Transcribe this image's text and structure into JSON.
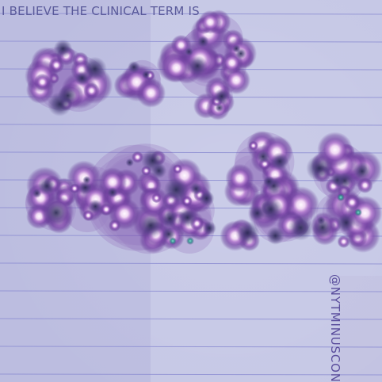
{
  "caption": "I BELIEVE THE CLINICAL TERM IS",
  "signature": "@NYTMINUSCONTEXT",
  "colors": {
    "paper": "#c6c8e6",
    "paper_left_shadow": "#bcbcdf",
    "paper_bottom_right": "#c2c2e2",
    "rule_lines": "#8e8ed2",
    "blob_outer": "#6a3d97",
    "blob_halo": "#a97bd2",
    "blob_core": "#fff8ff",
    "blob_shadow": "#3e3a68",
    "caption_ink": "#5a5a9a",
    "signature_ink": "#5a4d9c"
  },
  "artwork_description": "lined notebook paper photographed under purple light, overlaid with clusters of glowing purple spots"
}
